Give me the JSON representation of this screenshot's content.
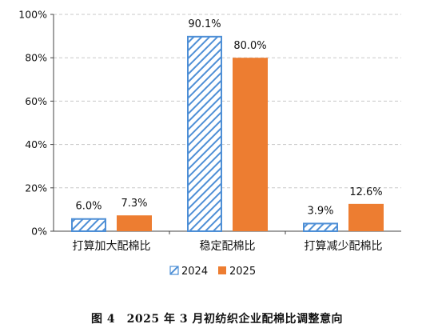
{
  "chart_data": {
    "type": "bar",
    "categories": [
      "打算加大配棉比",
      "稳定配棉比",
      "打算减少配棉比"
    ],
    "series": [
      {
        "name": "2024",
        "values": [
          6.0,
          90.1,
          3.9
        ],
        "color": "#4e8fd6",
        "pattern": "diagonal-hatch"
      },
      {
        "name": "2025",
        "values": [
          7.3,
          80.0,
          12.6
        ],
        "color": "#ed7d31",
        "pattern": "solid"
      }
    ],
    "data_labels": [
      [
        "6.0%",
        "90.1%",
        "3.9%"
      ],
      [
        "7.3%",
        "80.0%",
        "12.6%"
      ]
    ],
    "ylim": [
      0,
      100
    ],
    "yticks": [
      "0%",
      "20%",
      "40%",
      "60%",
      "80%",
      "100%"
    ],
    "grid": "horizontal-dashed",
    "legend_position": "bottom-center",
    "title": "",
    "xlabel": "",
    "ylabel": ""
  },
  "caption": "图 4　2025 年 3 月初纺织企业配棉比调整意向"
}
